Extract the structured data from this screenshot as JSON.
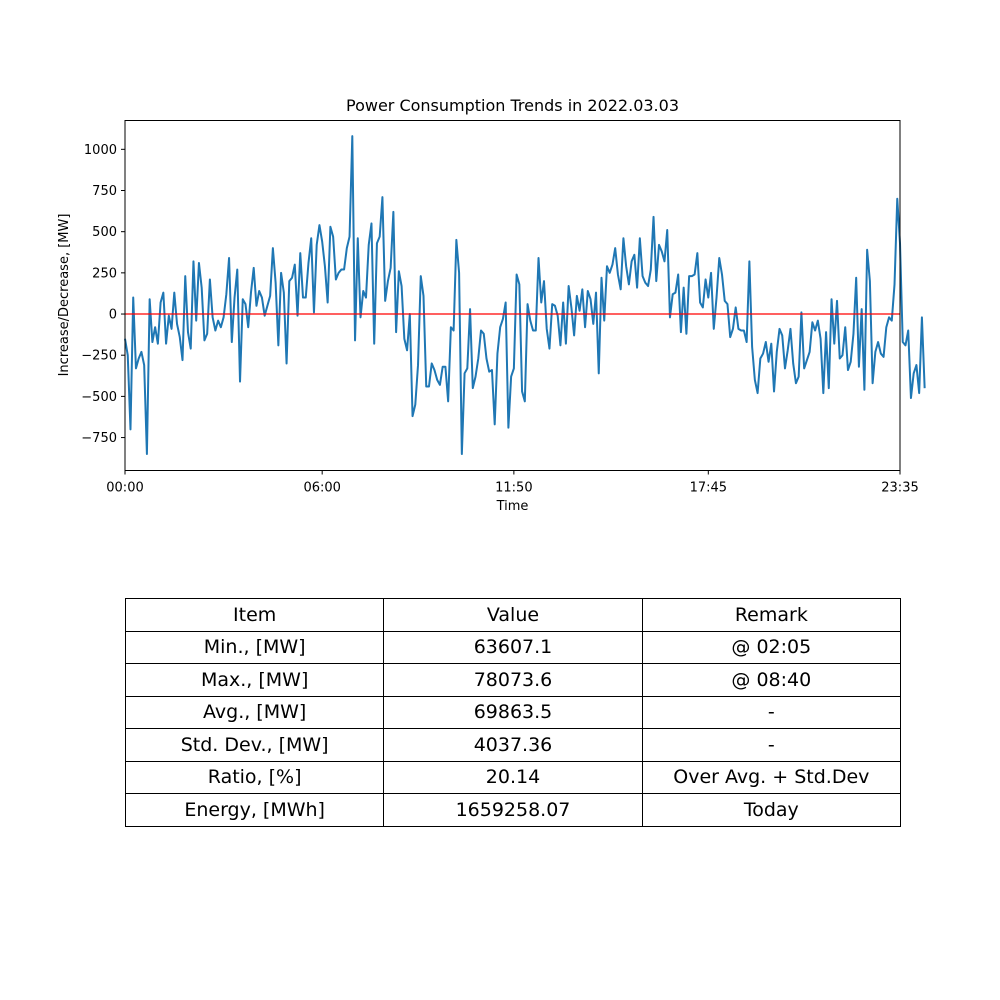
{
  "chart_data": {
    "type": "line",
    "title": "Power Consumption Trends in 2022.03.03",
    "xlabel": "Time",
    "ylabel": "Increase/Decrease, [MW]",
    "x_tick_labels": [
      "00:00",
      "06:00",
      "11:50",
      "17:45",
      "23:35"
    ],
    "x_tick_index": [
      0,
      72,
      142,
      213,
      283
    ],
    "y_ticks": [
      -750,
      -500,
      -250,
      0,
      250,
      500,
      750,
      1000
    ],
    "y_tick_labels": [
      "−750",
      "−500",
      "−250",
      "0",
      "250",
      "500",
      "750",
      "1000"
    ],
    "ylim": [
      -950,
      1175
    ],
    "grid": false,
    "line_color": "#1f77b4",
    "reference_line": {
      "value": 0,
      "color": "#ff0000"
    },
    "series": [
      {
        "interval_minutes": 5,
        "start": "00:00",
        "values": [
          -150,
          -250,
          -700,
          100,
          -330,
          -270,
          -230,
          -310,
          -850,
          90,
          -170,
          -80,
          -180,
          70,
          130,
          -180,
          -10,
          -90,
          130,
          -60,
          -140,
          -280,
          230,
          -110,
          -210,
          320,
          -40,
          310,
          160,
          -160,
          -120,
          210,
          -20,
          -100,
          -40,
          -80,
          -20,
          120,
          340,
          -170,
          100,
          270,
          -410,
          90,
          60,
          -80,
          130,
          280,
          50,
          140,
          100,
          -10,
          50,
          110,
          400,
          190,
          -190,
          250,
          130,
          -300,
          200,
          220,
          300,
          -10,
          370,
          100,
          100,
          310,
          460,
          10,
          420,
          540,
          440,
          290,
          70,
          530,
          470,
          210,
          250,
          270,
          270,
          400,
          470,
          1080,
          -160,
          460,
          -20,
          140,
          100,
          420,
          550,
          -180,
          430,
          470,
          710,
          80,
          200,
          280,
          620,
          -110,
          260,
          170,
          -150,
          -220,
          0,
          -620,
          -550,
          -310,
          230,
          110,
          -440,
          -440,
          -300,
          -340,
          -400,
          -430,
          -320,
          -320,
          -530,
          -80,
          -100,
          450,
          250,
          -850,
          -360,
          -330,
          30,
          -450,
          -380,
          -270,
          -100,
          -120,
          -270,
          -350,
          -340,
          -670,
          -240,
          -80,
          -30,
          70,
          -690,
          -380,
          -330,
          240,
          180,
          -470,
          -530,
          60,
          -40,
          -100,
          -100,
          340,
          70,
          200,
          -90,
          -210,
          60,
          50,
          -10,
          -190,
          70,
          -180,
          170,
          40,
          -130,
          110,
          20,
          150,
          -80,
          140,
          90,
          -60,
          130,
          -360,
          220,
          -40,
          290,
          250,
          300,
          400,
          240,
          150,
          460,
          290,
          180,
          320,
          360,
          160,
          460,
          230,
          190,
          170,
          270,
          590,
          200,
          420,
          380,
          320,
          510,
          -20,
          120,
          130,
          240,
          -110,
          160,
          -120,
          230,
          230,
          240,
          370,
          70,
          40,
          210,
          100,
          250,
          -90,
          100,
          340,
          240,
          80,
          60,
          -140,
          -90,
          40,
          -90,
          -100,
          -100,
          -170,
          320,
          -200,
          -400,
          -480,
          -270,
          -240,
          -170,
          -290,
          -180,
          -470,
          -230,
          -90,
          -130,
          -330,
          -220,
          -90,
          -300,
          -420,
          -380,
          10,
          -330,
          -280,
          -230,
          -50,
          -100,
          -40,
          -150,
          -480,
          -110,
          -450,
          90,
          -180,
          80,
          -270,
          -250,
          -80,
          -340,
          -290,
          -120,
          220,
          -320,
          30,
          -460,
          390,
          200,
          -420,
          -230,
          -170,
          -240,
          -260,
          -80,
          -20,
          -40,
          180,
          700,
          430,
          -170,
          -190,
          -100,
          -510,
          -360,
          -310,
          -480,
          -20,
          -450
        ]
      }
    ]
  },
  "table": {
    "headers": [
      "Item",
      "Value",
      "Remark"
    ],
    "rows": [
      [
        "Min., [MW]",
        "63607.1",
        "@ 02:05"
      ],
      [
        "Max., [MW]",
        "78073.6",
        "@ 08:40"
      ],
      [
        "Avg., [MW]",
        "69863.5",
        "-"
      ],
      [
        "Std. Dev., [MW]",
        "4037.36",
        "-"
      ],
      [
        "Ratio, [%]",
        "20.14",
        "Over Avg. + Std.Dev"
      ],
      [
        "Energy, [MWh]",
        "1659258.07",
        "Today"
      ]
    ]
  }
}
